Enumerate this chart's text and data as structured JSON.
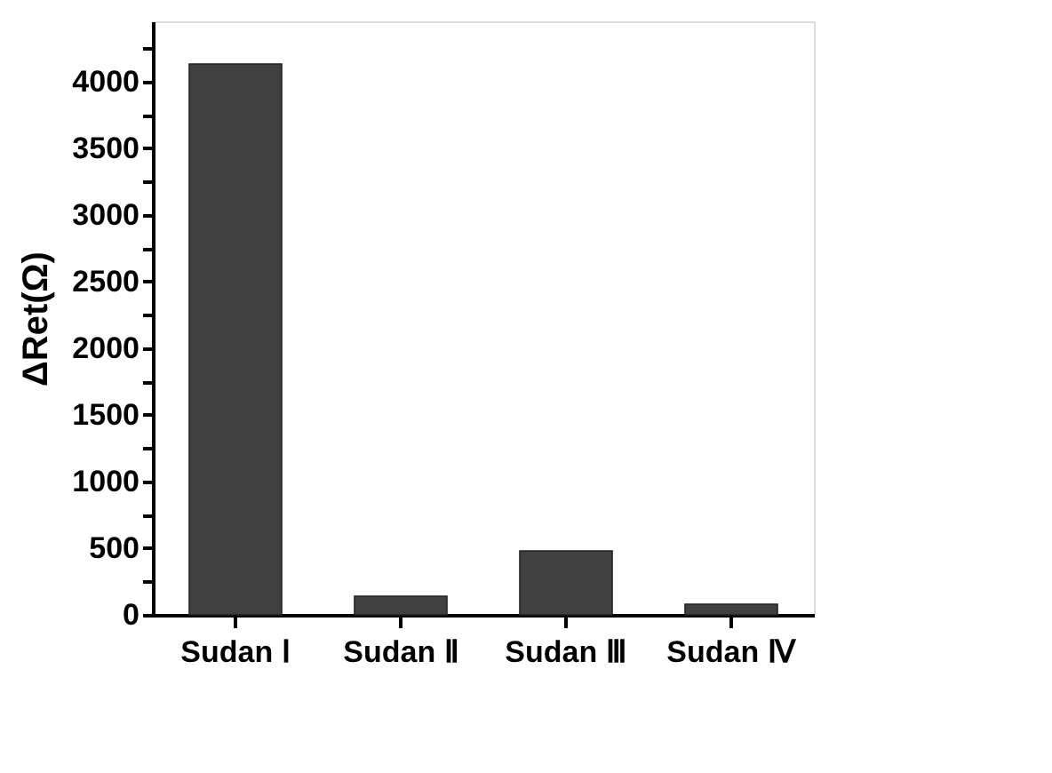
{
  "chart_data": {
    "type": "bar",
    "categories": [
      "Sudan Ⅰ",
      "Sudan Ⅱ",
      "Sudan Ⅲ",
      "Sudan Ⅳ"
    ],
    "values": [
      4130,
      140,
      480,
      80
    ],
    "color": "#404040",
    "ylabel": "ΔRet(Ω)",
    "ylim": [
      0,
      4450
    ],
    "yticks": [
      0,
      {
        "value": 250,
        "label": null
      },
      500,
      {
        "value": 750,
        "label": null
      },
      1000,
      {
        "value": 1250,
        "label": null
      },
      1500,
      {
        "value": 1750,
        "label": null
      },
      2000,
      {
        "value": 2250,
        "label": null
      },
      2500,
      {
        "value": 2750,
        "label": null
      },
      3000,
      {
        "value": 3250,
        "label": null
      },
      3500,
      {
        "value": 3750,
        "label": null
      },
      4000,
      {
        "value": 4250,
        "label": null
      }
    ],
    "grid": false
  }
}
